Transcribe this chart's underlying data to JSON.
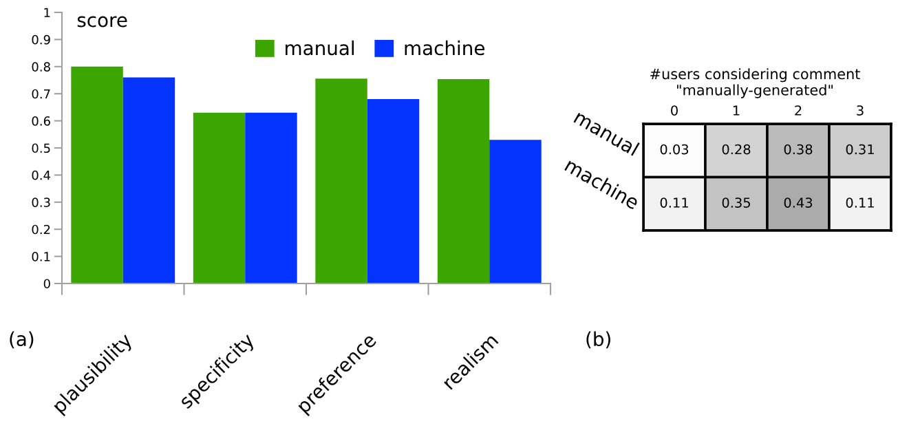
{
  "chart_data": [
    {
      "type": "bar",
      "ylabel": "score",
      "categories": [
        "plausibility",
        "specificity",
        "preference",
        "realism"
      ],
      "series": [
        {
          "name": "manual",
          "color": "#3ca500",
          "values": [
            0.8,
            0.63,
            0.756,
            0.754
          ]
        },
        {
          "name": "machine",
          "color": "#0432ff",
          "values": [
            0.76,
            0.63,
            0.68,
            0.53
          ]
        }
      ],
      "ylim": [
        0,
        1
      ],
      "yticks": [
        0,
        0.1,
        0.2,
        0.3,
        0.4,
        0.5,
        0.6,
        0.7,
        0.8,
        0.9,
        1
      ],
      "legend": "top right",
      "grid": false,
      "annotations": [
        "(a)"
      ]
    },
    {
      "type": "heatmap",
      "title": "#users considering comment\n\"manually-generated\"",
      "categories": [
        "0",
        "1",
        "2",
        "3"
      ],
      "y_categories": [
        "manual",
        "machine"
      ],
      "cells": [
        [
          0.03,
          0.28,
          0.38,
          0.31
        ],
        [
          0.11,
          0.35,
          0.43,
          0.11
        ]
      ],
      "data_labels": true,
      "annotations": [
        "(b)"
      ]
    }
  ]
}
